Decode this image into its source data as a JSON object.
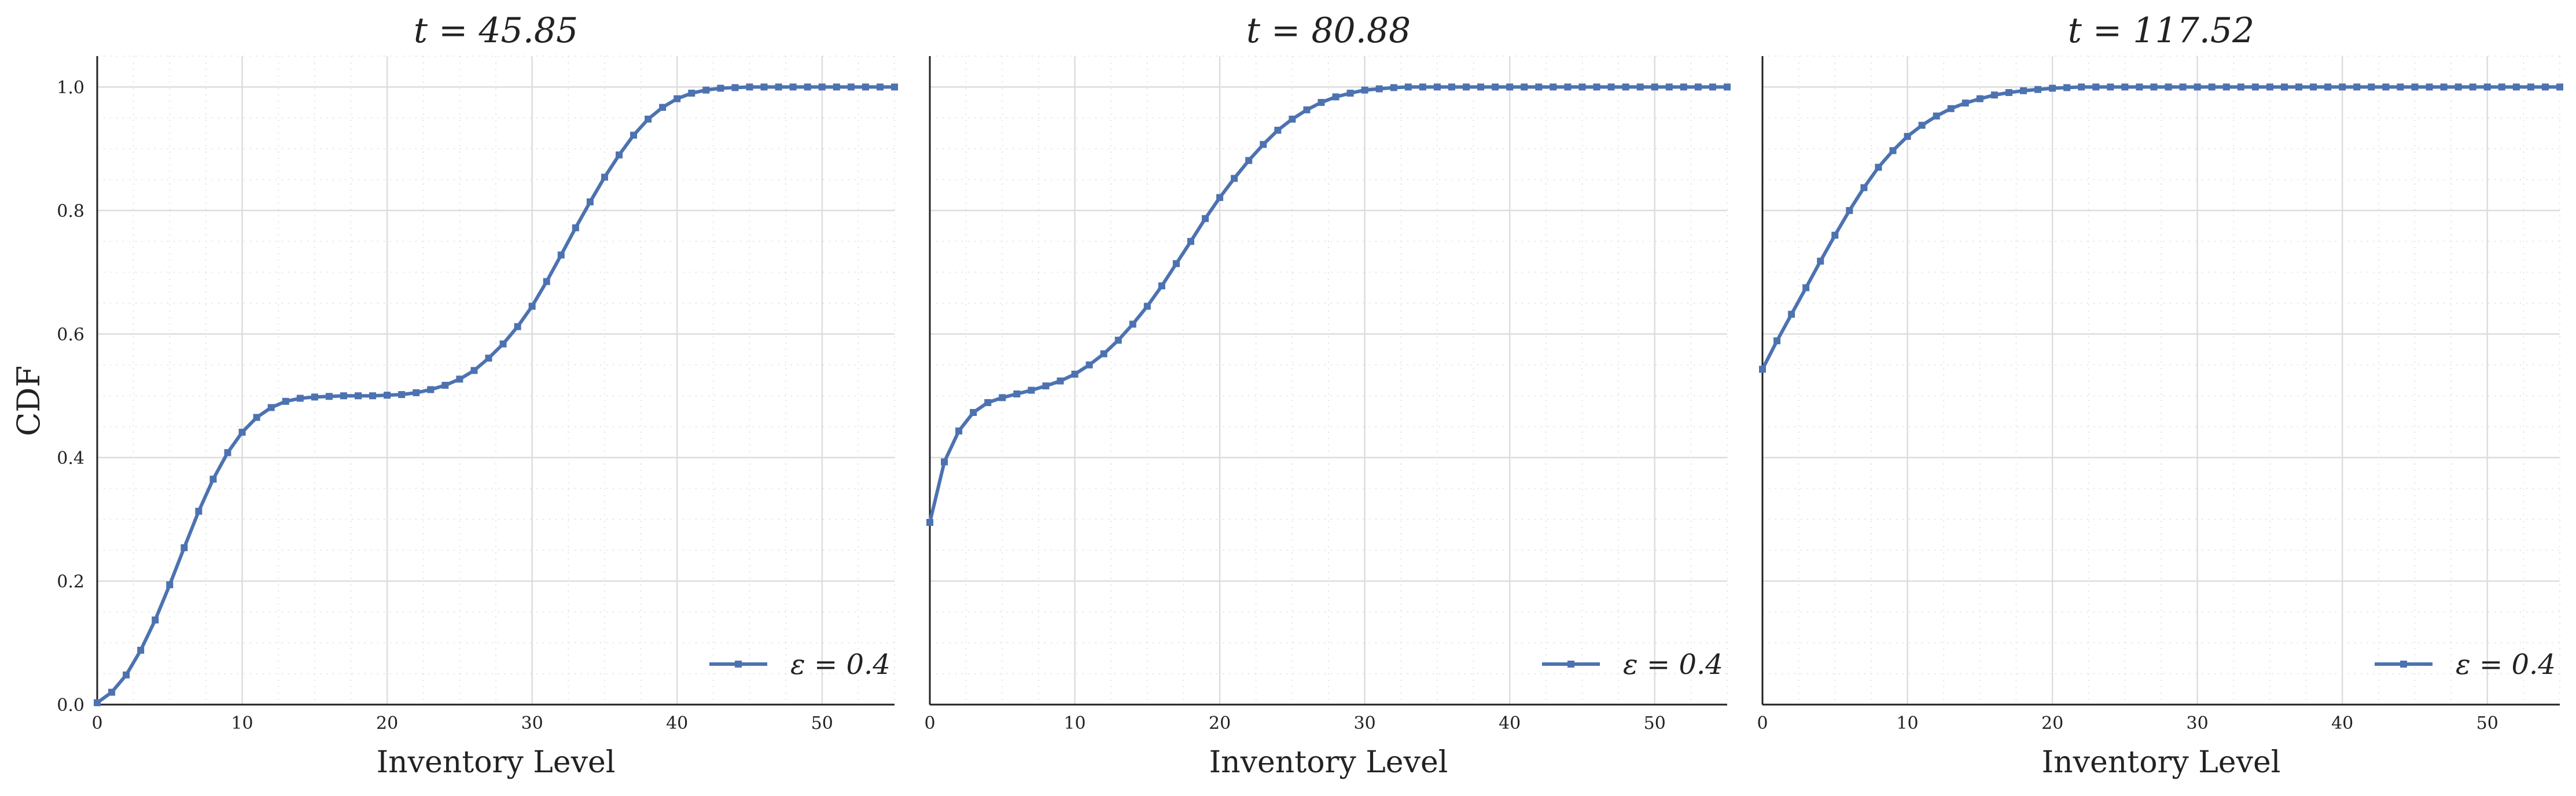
{
  "figure": {
    "ylabel": "CDF",
    "colors": {
      "line": "#4c72b0",
      "major_grid": "#dddddd",
      "minor_grid": "#e4e4e4",
      "axis": "#222222"
    }
  },
  "chart_data": [
    {
      "type": "line",
      "title": "t = 45.85",
      "xlabel": "Inventory Level",
      "ylabel": "CDF",
      "xlim": [
        0,
        55
      ],
      "ylim": [
        0,
        1.05
      ],
      "xticks": [
        0,
        10,
        20,
        30,
        40,
        50
      ],
      "yticks": [
        0.0,
        0.2,
        0.4,
        0.6,
        0.8,
        1.0
      ],
      "grid": "major and minor",
      "legend_position": "lower-right",
      "markers": "square",
      "series": [
        {
          "name": "ε = 0.4",
          "x": [
            0,
            1,
            2,
            3,
            4,
            5,
            6,
            7,
            8,
            9,
            10,
            11,
            12,
            13,
            14,
            15,
            16,
            17,
            18,
            19,
            20,
            21,
            22,
            23,
            24,
            25,
            26,
            27,
            28,
            29,
            30,
            31,
            32,
            33,
            34,
            35,
            36,
            37,
            38,
            39,
            40,
            41,
            42,
            43,
            44,
            45,
            46,
            47,
            48,
            49,
            50,
            51,
            52,
            53,
            54,
            55
          ],
          "y": [
            0.003,
            0.02,
            0.048,
            0.088,
            0.137,
            0.194,
            0.254,
            0.313,
            0.365,
            0.408,
            0.441,
            0.465,
            0.481,
            0.491,
            0.496,
            0.498,
            0.499,
            0.5,
            0.5,
            0.5,
            0.501,
            0.502,
            0.505,
            0.51,
            0.517,
            0.527,
            0.541,
            0.561,
            0.584,
            0.612,
            0.645,
            0.685,
            0.728,
            0.772,
            0.814,
            0.854,
            0.89,
            0.922,
            0.948,
            0.967,
            0.981,
            0.99,
            0.995,
            0.998,
            0.999,
            1.0,
            1.0,
            1.0,
            1.0,
            1.0,
            1.0,
            1.0,
            1.0,
            1.0,
            1.0,
            1.0
          ]
        }
      ]
    },
    {
      "type": "line",
      "title": "t = 80.88",
      "xlabel": "Inventory Level",
      "ylabel": "",
      "xlim": [
        0,
        55
      ],
      "ylim": [
        0,
        1.05
      ],
      "xticks": [
        0,
        10,
        20,
        30,
        40,
        50
      ],
      "yticks": [],
      "grid": "major and minor",
      "legend_position": "lower-right",
      "markers": "square",
      "series": [
        {
          "name": "ε = 0.4",
          "x": [
            0,
            1,
            2,
            3,
            4,
            5,
            6,
            7,
            8,
            9,
            10,
            11,
            12,
            13,
            14,
            15,
            16,
            17,
            18,
            19,
            20,
            21,
            22,
            23,
            24,
            25,
            26,
            27,
            28,
            29,
            30,
            31,
            32,
            33,
            34,
            35,
            36,
            37,
            38,
            39,
            40,
            41,
            42,
            43,
            44,
            45,
            46,
            47,
            48,
            49,
            50,
            51,
            52,
            53,
            54,
            55
          ],
          "y": [
            0.295,
            0.393,
            0.443,
            0.473,
            0.489,
            0.497,
            0.503,
            0.509,
            0.516,
            0.524,
            0.535,
            0.55,
            0.568,
            0.59,
            0.616,
            0.645,
            0.678,
            0.714,
            0.75,
            0.787,
            0.821,
            0.852,
            0.881,
            0.907,
            0.93,
            0.948,
            0.963,
            0.975,
            0.984,
            0.99,
            0.995,
            0.997,
            0.999,
            1.0,
            1.0,
            1.0,
            1.0,
            1.0,
            1.0,
            1.0,
            1.0,
            1.0,
            1.0,
            1.0,
            1.0,
            1.0,
            1.0,
            1.0,
            1.0,
            1.0,
            1.0,
            1.0,
            1.0,
            1.0,
            1.0,
            1.0
          ]
        }
      ]
    },
    {
      "type": "line",
      "title": "t = 117.52",
      "xlabel": "Inventory Level",
      "ylabel": "",
      "xlim": [
        0,
        55
      ],
      "ylim": [
        0,
        1.05
      ],
      "xticks": [
        0,
        10,
        20,
        30,
        40,
        50
      ],
      "yticks": [],
      "grid": "major and minor",
      "legend_position": "lower-right",
      "markers": "square",
      "series": [
        {
          "name": "ε = 0.4",
          "x": [
            0,
            1,
            2,
            3,
            4,
            5,
            6,
            7,
            8,
            9,
            10,
            11,
            12,
            13,
            14,
            15,
            16,
            17,
            18,
            19,
            20,
            21,
            22,
            23,
            24,
            25,
            26,
            27,
            28,
            29,
            30,
            31,
            32,
            33,
            34,
            35,
            36,
            37,
            38,
            39,
            40,
            41,
            42,
            43,
            44,
            45,
            46,
            47,
            48,
            49,
            50,
            51,
            52,
            53,
            54,
            55
          ],
          "y": [
            0.543,
            0.589,
            0.632,
            0.675,
            0.718,
            0.76,
            0.8,
            0.837,
            0.87,
            0.897,
            0.92,
            0.938,
            0.953,
            0.965,
            0.974,
            0.981,
            0.987,
            0.991,
            0.994,
            0.996,
            0.998,
            0.999,
            1.0,
            1.0,
            1.0,
            1.0,
            1.0,
            1.0,
            1.0,
            1.0,
            1.0,
            1.0,
            1.0,
            1.0,
            1.0,
            1.0,
            1.0,
            1.0,
            1.0,
            1.0,
            1.0,
            1.0,
            1.0,
            1.0,
            1.0,
            1.0,
            1.0,
            1.0,
            1.0,
            1.0,
            1.0,
            1.0,
            1.0,
            1.0,
            1.0,
            1.0
          ]
        }
      ]
    }
  ]
}
